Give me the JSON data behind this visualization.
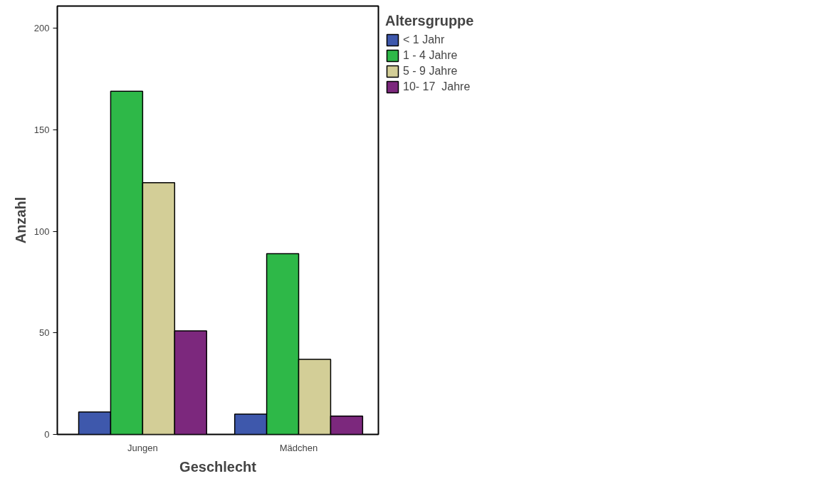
{
  "chart_data": {
    "type": "bar",
    "xlabel": "Geschlecht",
    "ylabel": "Anzahl",
    "legend_title": "Altersgruppe",
    "categories": [
      "Jungen",
      "Mädchen"
    ],
    "series": [
      {
        "name": "< 1 Jahr",
        "color": "#3e58ac",
        "values": [
          11,
          10
        ]
      },
      {
        "name": "1 - 4 Jahre",
        "color": "#2eb848",
        "values": [
          169,
          89
        ]
      },
      {
        "name": "5 - 9 Jahre",
        "color": "#d3ce97",
        "values": [
          124,
          37
        ]
      },
      {
        "name": "10- 17  Jahre",
        "color": "#7c287d",
        "values": [
          51,
          9
        ]
      }
    ],
    "ylim": [
      0,
      211
    ],
    "yticks": [
      0,
      50,
      100,
      150,
      200
    ],
    "grid": false,
    "legend": "top right"
  }
}
